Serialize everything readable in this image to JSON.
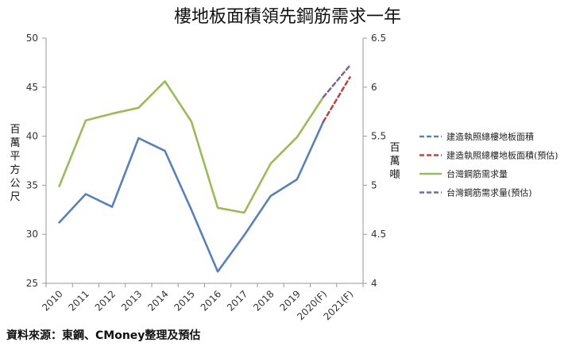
{
  "chart_data": {
    "type": "line",
    "title": "樓地板面積領先鋼筋需求一年",
    "categories": [
      "2010",
      "2011",
      "2012",
      "2013",
      "2014",
      "2015",
      "2016",
      "2017",
      "2018",
      "2019",
      "2020(F)",
      "2021(F)"
    ],
    "left_axis": {
      "label": "百萬平方公尺",
      "ylim": [
        25,
        50
      ],
      "ticks": [
        25,
        30,
        35,
        40,
        45,
        50
      ]
    },
    "right_axis": {
      "label": "百萬噸",
      "ylim": [
        4,
        6.5
      ],
      "ticks": [
        "4",
        "4.5",
        "5",
        "5.5",
        "6",
        "6.5"
      ]
    },
    "series": [
      {
        "name": "建造執照總樓地板面積",
        "axis": "left",
        "color": "#5A80B8",
        "dash": false,
        "legend_dash": true,
        "values": [
          31.2,
          34.1,
          32.8,
          39.8,
          38.5,
          32.5,
          26.2,
          29.9,
          33.9,
          35.6,
          41.5,
          null
        ]
      },
      {
        "name": "建造執照總樓地板面積(預估)",
        "axis": "left",
        "color": "#B24A45",
        "dash": true,
        "legend_dash": true,
        "values": [
          null,
          null,
          null,
          null,
          null,
          null,
          null,
          null,
          null,
          null,
          41.5,
          46.0
        ]
      },
      {
        "name": "台灣鋼筋需求量",
        "axis": "right",
        "color": "#9ABB59",
        "dash": false,
        "legend_dash": false,
        "values": [
          4.99,
          5.66,
          5.73,
          5.79,
          6.06,
          5.65,
          4.77,
          4.72,
          5.22,
          5.49,
          5.9,
          null
        ]
      },
      {
        "name": "台灣鋼筋需求量(預估)",
        "axis": "right",
        "color": "#8064A2",
        "dash": true,
        "legend_dash": true,
        "values": [
          null,
          null,
          null,
          null,
          null,
          null,
          null,
          null,
          null,
          null,
          5.9,
          6.22
        ]
      }
    ],
    "legend_position": "right"
  },
  "source": "資料來源：東鋼、CMoney整理及預估"
}
